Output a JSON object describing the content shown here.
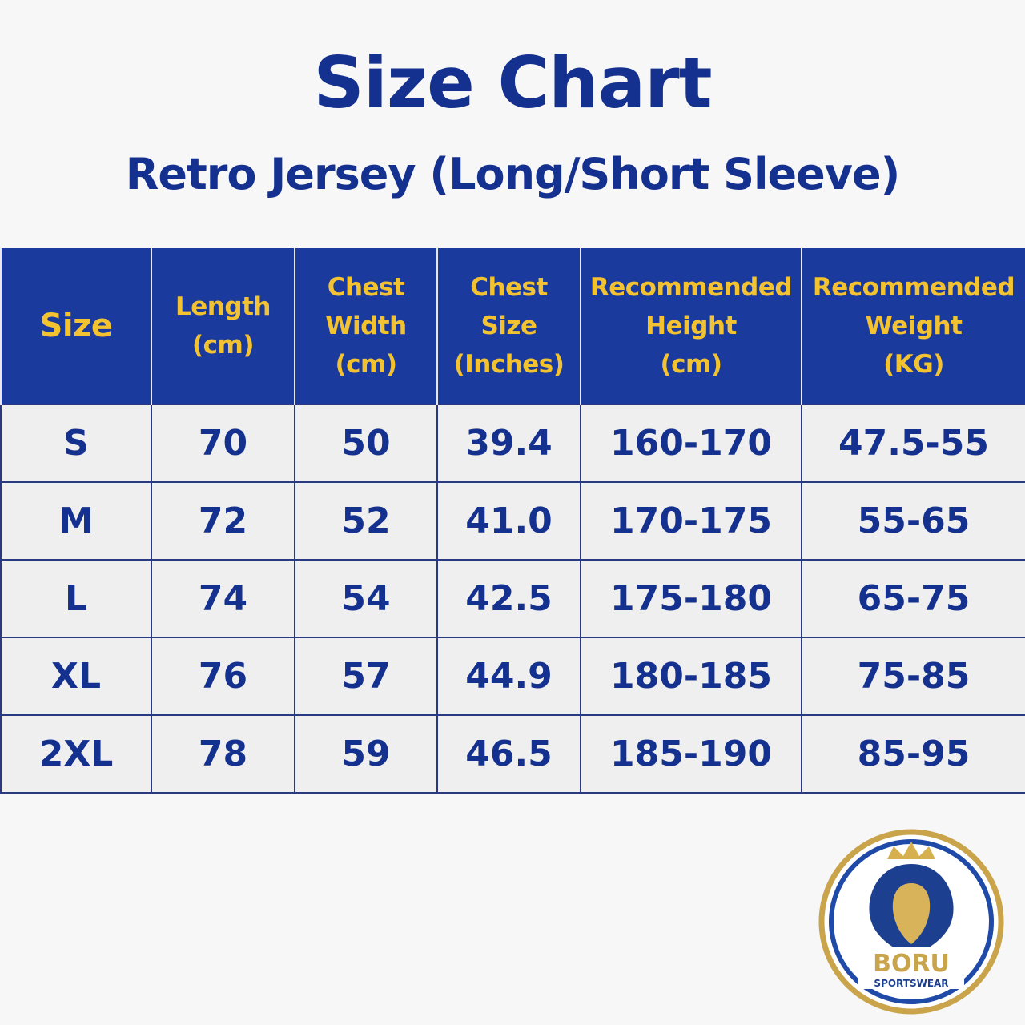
{
  "header": {
    "title": "Size Chart",
    "subtitle": "Retro Jersey (Long/Short Sleeve)"
  },
  "table": {
    "columns": [
      "Size",
      "Length\n(cm)",
      "Chest\nWidth\n(cm)",
      "Chest\nSize\n(Inches)",
      "Recommended\nHeight\n(cm)",
      "Recommended\nWeight\n(KG)"
    ],
    "rows": [
      [
        "S",
        "70",
        "50",
        "39.4",
        "160-170",
        "47.5-55"
      ],
      [
        "M",
        "72",
        "52",
        "41.0",
        "170-175",
        "55-65"
      ],
      [
        "L",
        "74",
        "54",
        "42.5",
        "175-180",
        "65-75"
      ],
      [
        "XL",
        "76",
        "57",
        "44.9",
        "180-185",
        "75-85"
      ],
      [
        "2XL",
        "78",
        "59",
        "46.5",
        "185-190",
        "85-95"
      ]
    ]
  },
  "logo": {
    "name": "BORU",
    "tagline": "SPORTSWEAR"
  }
}
